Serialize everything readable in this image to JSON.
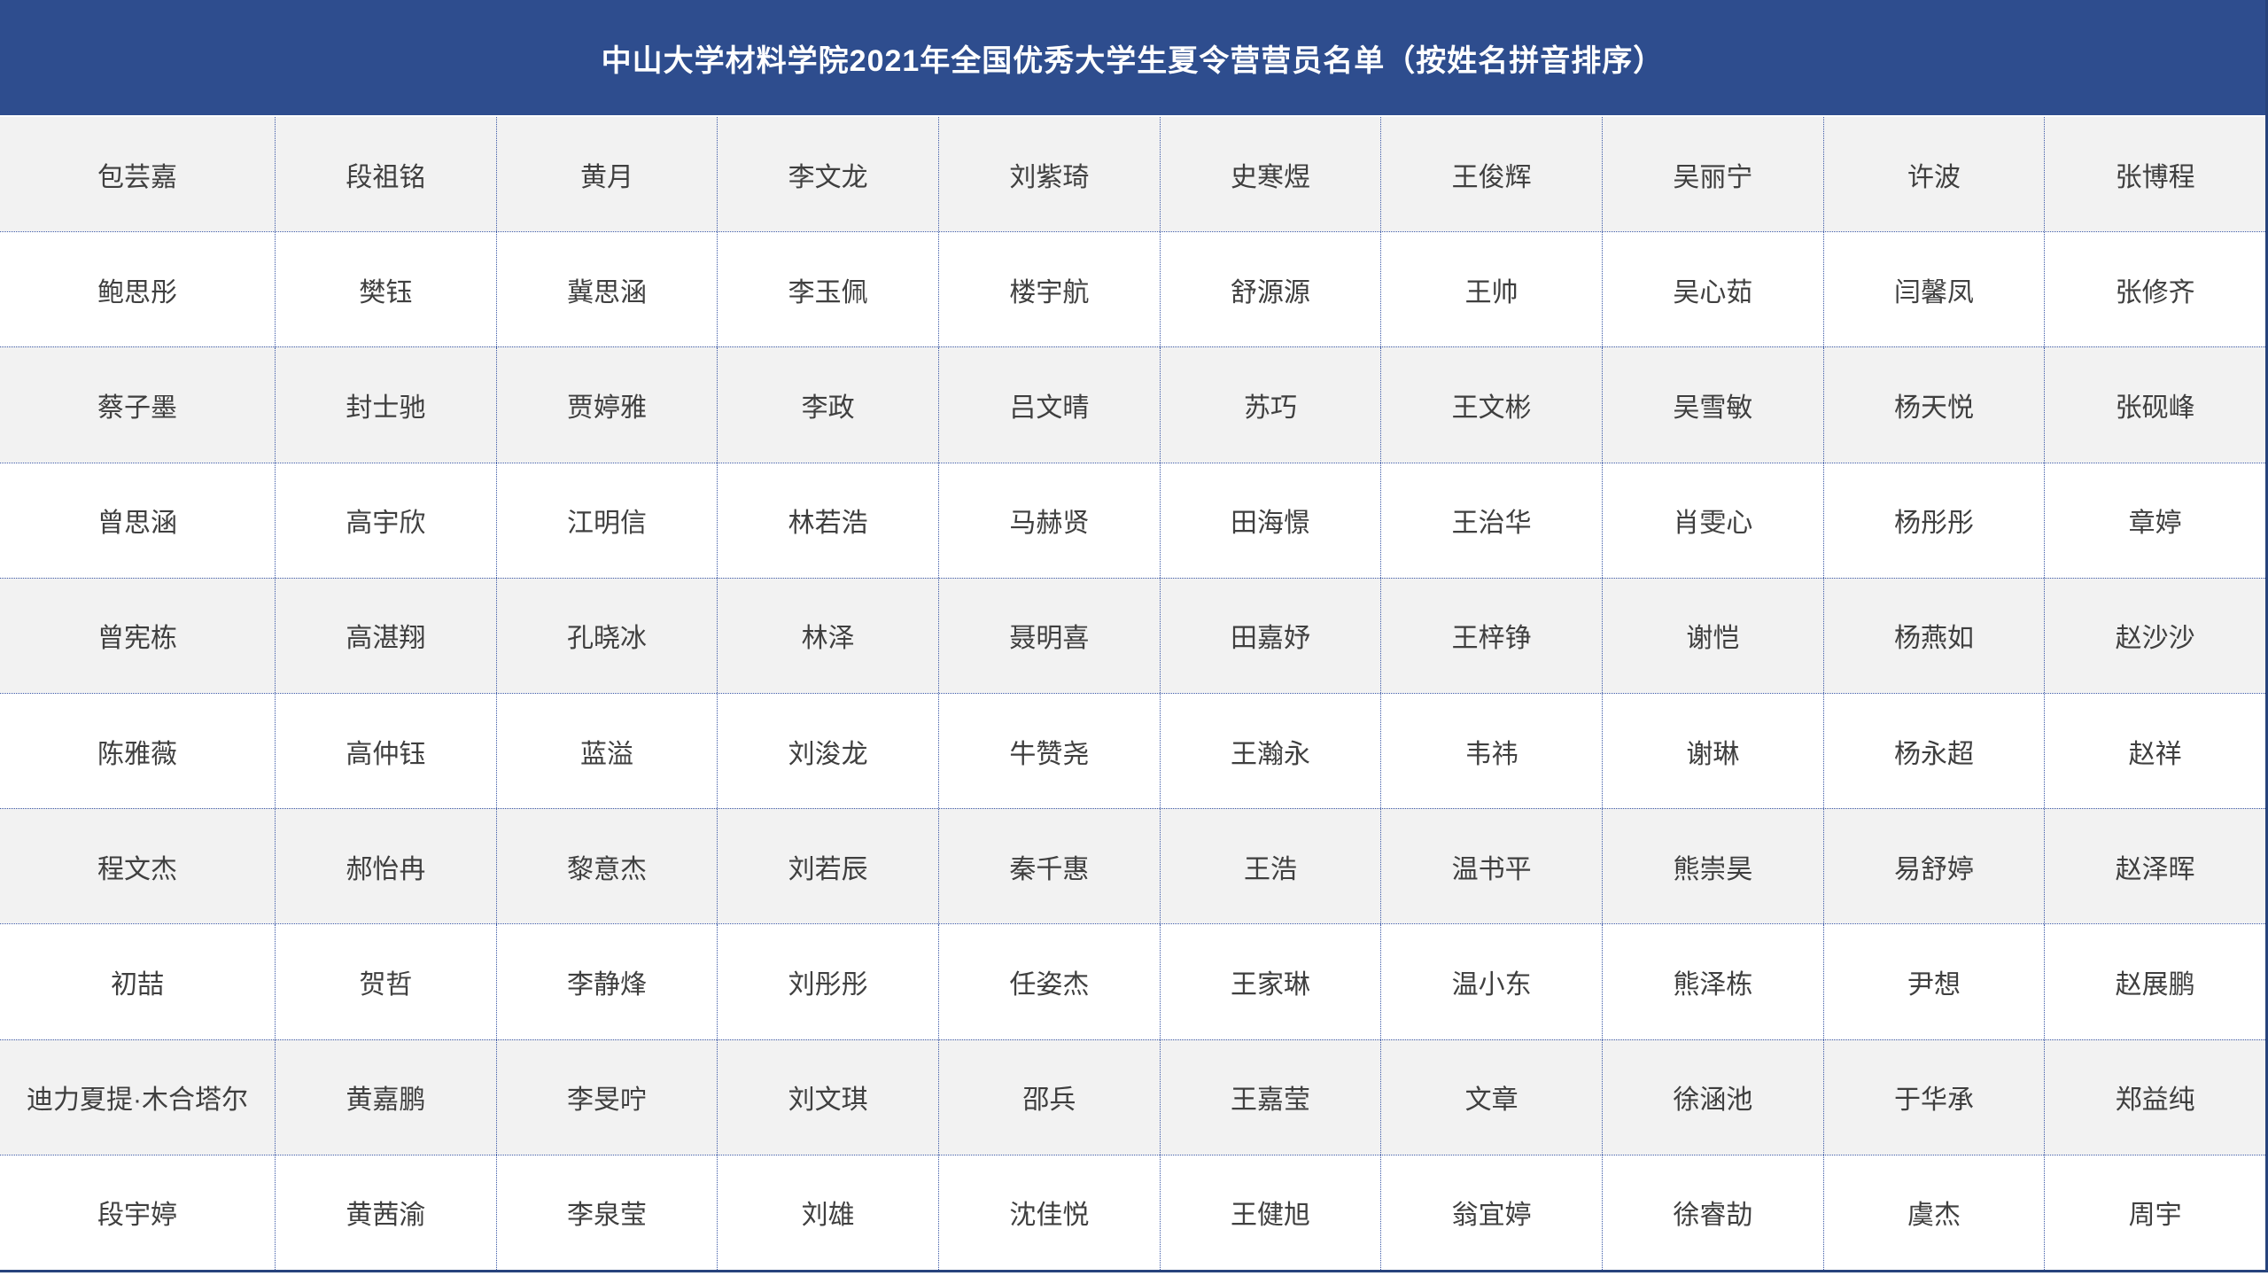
{
  "header": {
    "title": "中山大学材料学院2021年全国优秀大学生夏令营营员名单（按姓名拼音排序）"
  },
  "table": {
    "columns": 10,
    "sort_note": "按姓名拼音排序",
    "rows": [
      [
        "包芸嘉",
        "段祖铭",
        "黄月",
        "李文龙",
        "刘紫琦",
        "史寒煜",
        "王俊辉",
        "吴丽宁",
        "许波",
        "张博程"
      ],
      [
        "鲍思彤",
        "樊钰",
        "冀思涵",
        "李玉佩",
        "楼宇航",
        "舒源源",
        "王帅",
        "吴心茹",
        "闫馨凤",
        "张修齐"
      ],
      [
        "蔡子墨",
        "封士驰",
        "贾婷雅",
        "李政",
        "吕文晴",
        "苏巧",
        "王文彬",
        "吴雪敏",
        "杨天悦",
        "张砚峰"
      ],
      [
        "曾思涵",
        "高宇欣",
        "江明信",
        "林若浩",
        "马赫贤",
        "田海憬",
        "王治华",
        "肖雯心",
        "杨彤彤",
        "章婷"
      ],
      [
        "曾宪栋",
        "高湛翔",
        "孔晓冰",
        "林泽",
        "聂明喜",
        "田嘉妤",
        "王梓铮",
        "谢恺",
        "杨燕如",
        "赵沙沙"
      ],
      [
        "陈雅薇",
        "高仲钰",
        "蓝溢",
        "刘浚龙",
        "牛赞尧",
        "王瀚永",
        "韦祎",
        "谢琳",
        "杨永超",
        "赵祥"
      ],
      [
        "程文杰",
        "郝怡冉",
        "黎意杰",
        "刘若辰",
        "秦千惠",
        "王浩",
        "温书平",
        "熊崇昊",
        "易舒婷",
        "赵泽晖"
      ],
      [
        "初喆",
        "贺哲",
        "李静烽",
        "刘彤彤",
        "任姿杰",
        "王家琳",
        "温小东",
        "熊泽栋",
        "尹想",
        "赵展鹏"
      ],
      [
        "迪力夏提·木合塔尔",
        "黄嘉鹏",
        "李旻咛",
        "刘文琪",
        "邵兵",
        "王嘉莹",
        "文章",
        "徐涵池",
        "于华承",
        "郑益纯"
      ],
      [
        "段宇婷",
        "黄茜渝",
        "李泉莹",
        "刘雄",
        "沈佳悦",
        "王健旭",
        "翁宜婷",
        "徐睿劼",
        "虞杰",
        "周宇"
      ]
    ]
  },
  "colors": {
    "header_bg": "#2e4d8e",
    "outer_border": "#27437c",
    "row_alt_bg": "#f2f2f2",
    "row_bg": "#ffffff",
    "grid_dot": "#3a57a5",
    "text": "#3f3f3f",
    "title_text": "#ffffff"
  }
}
